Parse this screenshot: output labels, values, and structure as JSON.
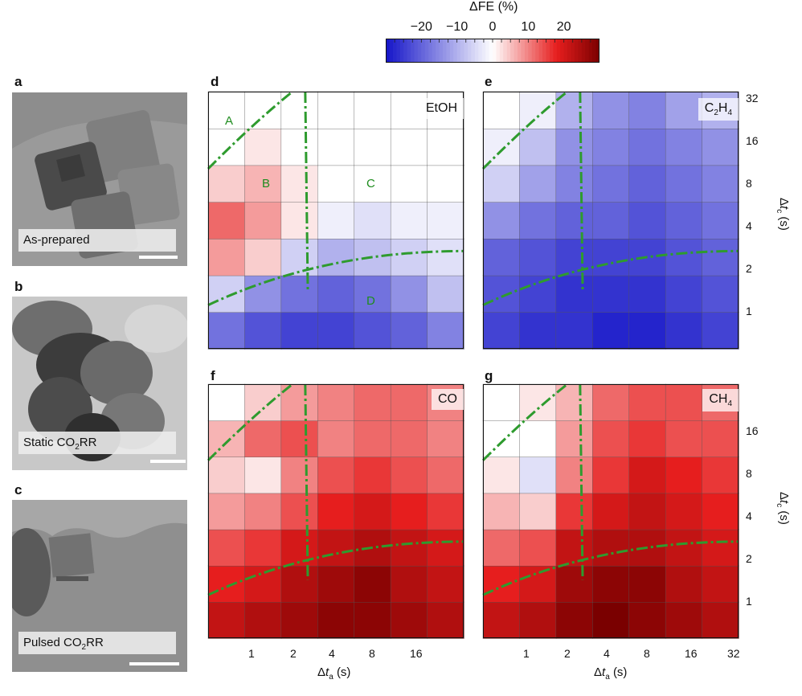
{
  "colorbar": {
    "title": "ΔFE (%)",
    "ticks": [
      "−20",
      "−10",
      "0",
      "10",
      "20"
    ],
    "tick_values": [
      -20,
      -10,
      0,
      10,
      20
    ],
    "range": [
      -30,
      30
    ]
  },
  "tem_panels": [
    {
      "letter": "a",
      "caption": "As-prepared"
    },
    {
      "letter": "b",
      "caption_pre": "Static CO",
      "caption_sub": "2",
      "caption_post": "RR"
    },
    {
      "letter": "c",
      "caption_pre": "Pulsed CO",
      "caption_sub": "2",
      "caption_post": "RR"
    }
  ],
  "map_panels": [
    {
      "letter": "d",
      "title_pre": "EtOH",
      "title_sub": "",
      "title_post": ""
    },
    {
      "letter": "e",
      "title_pre": "C",
      "title_sub": "2",
      "title_post": "H",
      "title_sub2": "4"
    },
    {
      "letter": "f",
      "title_pre": "CO",
      "title_sub": "",
      "title_post": ""
    },
    {
      "letter": "g",
      "title_pre": "CH",
      "title_sub": "4",
      "title_post": ""
    }
  ],
  "regions": [
    "A",
    "B",
    "C",
    "D"
  ],
  "axes": {
    "x_label_pre": "Δ",
    "x_label_var": "t",
    "x_label_sub": "a",
    "x_label_post": "(s)",
    "y_label_pre": "Δ",
    "y_label_var": "t",
    "y_label_sub": "c",
    "y_label_post": "(s)",
    "x_ticks_left": [
      "1",
      "2",
      "4",
      "8",
      "16"
    ],
    "x_ticks_right": [
      "1",
      "2",
      "4",
      "8",
      "16",
      "32"
    ],
    "y_ticks_top": [
      "32",
      "16",
      "8",
      "4",
      "2",
      "1"
    ],
    "y_ticks_bottom": [
      "16",
      "8",
      "4",
      "2",
      "1"
    ]
  },
  "colors": {
    "blue_max": "#1414c8",
    "white": "#ffffff",
    "red_max": "#7a0000",
    "guide": "#2e9b2e"
  },
  "chart_data": [
    {
      "type": "heatmap",
      "title": "EtOH",
      "xlabel": "Δt_a (s)",
      "ylabel": "Δt_c (s)",
      "x_scale": "log2",
      "y_scale": "log2",
      "x": [
        0.5,
        1,
        2,
        4,
        8,
        16,
        32
      ],
      "y": [
        0.5,
        1,
        2,
        4,
        8,
        16,
        32
      ],
      "values": [
        [
          -18,
          -22,
          -24,
          -24,
          -22,
          -20,
          -16
        ],
        [
          -6,
          -14,
          -18,
          -20,
          -18,
          -14,
          -8
        ],
        [
          8,
          4,
          -6,
          -10,
          -8,
          -6,
          -4
        ],
        [
          12,
          8,
          2,
          -2,
          -4,
          -2,
          -2
        ],
        [
          4,
          6,
          2,
          0,
          0,
          0,
          0
        ],
        [
          0,
          2,
          0,
          0,
          0,
          0,
          0
        ],
        [
          0,
          0,
          0,
          0,
          0,
          0,
          0
        ]
      ],
      "clim": [
        -30,
        30
      ],
      "grid": false
    },
    {
      "type": "heatmap",
      "title": "C2H4",
      "xlabel": "Δt_a (s)",
      "ylabel": "Δt_c (s)",
      "x_scale": "log2",
      "y_scale": "log2",
      "x": [
        0.5,
        1,
        2,
        4,
        8,
        16,
        32
      ],
      "y": [
        0.5,
        1,
        2,
        4,
        8,
        16,
        32
      ],
      "values": [
        [
          -24,
          -26,
          -26,
          -28,
          -28,
          -26,
          -24
        ],
        [
          -22,
          -24,
          -26,
          -26,
          -26,
          -24,
          -22
        ],
        [
          -20,
          -22,
          -24,
          -24,
          -24,
          -22,
          -20
        ],
        [
          -14,
          -18,
          -20,
          -20,
          -22,
          -20,
          -18
        ],
        [
          -6,
          -12,
          -16,
          -18,
          -20,
          -18,
          -16
        ],
        [
          -2,
          -8,
          -14,
          -16,
          -18,
          -16,
          -14
        ],
        [
          0,
          -2,
          -10,
          -14,
          -16,
          -12,
          -10
        ]
      ],
      "clim": [
        -30,
        30
      ],
      "grid": false
    },
    {
      "type": "heatmap",
      "title": "CO",
      "xlabel": "Δt_a (s)",
      "ylabel": "Δt_c (s)",
      "x_scale": "log2",
      "y_scale": "log2",
      "x": [
        0.5,
        1,
        2,
        4,
        8,
        16,
        32
      ],
      "y": [
        0.5,
        1,
        2,
        4,
        8,
        16,
        32
      ],
      "values": [
        [
          22,
          24,
          26,
          28,
          28,
          26,
          24
        ],
        [
          18,
          20,
          24,
          26,
          28,
          24,
          22
        ],
        [
          14,
          16,
          20,
          22,
          24,
          22,
          20
        ],
        [
          8,
          10,
          14,
          18,
          20,
          18,
          16
        ],
        [
          4,
          2,
          10,
          14,
          16,
          14,
          12
        ],
        [
          6,
          12,
          14,
          10,
          12,
          12,
          10
        ],
        [
          0,
          4,
          8,
          10,
          12,
          12,
          10
        ]
      ],
      "clim": [
        -30,
        30
      ],
      "grid": false
    },
    {
      "type": "heatmap",
      "title": "CH4",
      "xlabel": "Δt_a (s)",
      "ylabel": "Δt_c (s)",
      "x_scale": "log2",
      "y_scale": "log2",
      "x": [
        0.5,
        1,
        2,
        4,
        8,
        16,
        32
      ],
      "y": [
        0.5,
        1,
        2,
        4,
        8,
        16,
        32
      ],
      "values": [
        [
          22,
          24,
          28,
          30,
          28,
          26,
          24
        ],
        [
          18,
          20,
          26,
          28,
          28,
          24,
          22
        ],
        [
          12,
          14,
          22,
          24,
          24,
          22,
          20
        ],
        [
          6,
          4,
          16,
          20,
          22,
          20,
          18
        ],
        [
          2,
          -4,
          10,
          16,
          20,
          18,
          16
        ],
        [
          0,
          0,
          8,
          14,
          16,
          14,
          14
        ],
        [
          0,
          2,
          6,
          12,
          14,
          14,
          12
        ]
      ],
      "clim": [
        -30,
        30
      ],
      "grid": false
    }
  ]
}
